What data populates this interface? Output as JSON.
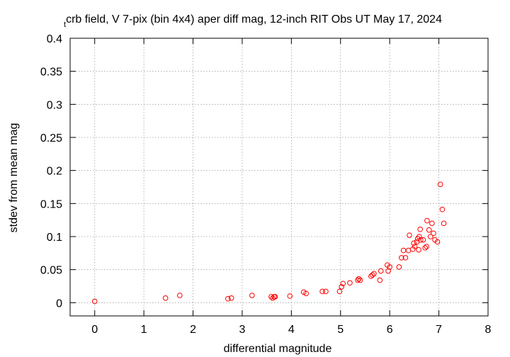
{
  "chart_data": {
    "type": "scatter",
    "title_prefix": "t",
    "title": "crb field, V 7-pix (bin 4x4) aper diff mag,  12-inch RIT Obs UT May 17, 2024",
    "xlabel": "differential magnitude",
    "ylabel": "stdev from mean mag",
    "xlim": [
      -0.5,
      8
    ],
    "ylim": [
      -0.02,
      0.4
    ],
    "xticks": [
      0,
      1,
      2,
      3,
      4,
      5,
      6,
      7,
      8
    ],
    "yticks": [
      0,
      0.05,
      0.1,
      0.15,
      0.2,
      0.25,
      0.3,
      0.35,
      0.4
    ],
    "xtick_labels": [
      "0",
      "1",
      "2",
      "3",
      "4",
      "5",
      "6",
      "7",
      "8"
    ],
    "ytick_labels": [
      "0",
      "0.05",
      "0.1",
      "0.15",
      "0.2",
      "0.25",
      "0.3",
      "0.35",
      "0.4"
    ],
    "grid": true,
    "marker": "open-circle",
    "marker_color": "#ff0000",
    "points": [
      [
        0.0,
        0.002
      ],
      [
        1.44,
        0.007
      ],
      [
        1.73,
        0.011
      ],
      [
        2.71,
        0.006
      ],
      [
        2.78,
        0.007
      ],
      [
        3.2,
        0.011
      ],
      [
        3.59,
        0.009
      ],
      [
        3.62,
        0.007
      ],
      [
        3.65,
        0.009
      ],
      [
        3.67,
        0.009
      ],
      [
        3.97,
        0.01
      ],
      [
        4.25,
        0.016
      ],
      [
        4.3,
        0.014
      ],
      [
        4.63,
        0.017
      ],
      [
        4.7,
        0.017
      ],
      [
        4.98,
        0.017
      ],
      [
        5.02,
        0.024
      ],
      [
        5.05,
        0.029
      ],
      [
        5.19,
        0.03
      ],
      [
        5.35,
        0.034
      ],
      [
        5.37,
        0.036
      ],
      [
        5.4,
        0.034
      ],
      [
        5.62,
        0.04
      ],
      [
        5.65,
        0.042
      ],
      [
        5.68,
        0.044
      ],
      [
        5.8,
        0.034
      ],
      [
        5.82,
        0.048
      ],
      [
        5.95,
        0.057
      ],
      [
        5.97,
        0.048
      ],
      [
        6.0,
        0.054
      ],
      [
        6.19,
        0.054
      ],
      [
        6.24,
        0.068
      ],
      [
        6.28,
        0.079
      ],
      [
        6.32,
        0.068
      ],
      [
        6.38,
        0.079
      ],
      [
        6.4,
        0.102
      ],
      [
        6.47,
        0.081
      ],
      [
        6.49,
        0.09
      ],
      [
        6.51,
        0.085
      ],
      [
        6.55,
        0.092
      ],
      [
        6.57,
        0.097
      ],
      [
        6.59,
        0.08
      ],
      [
        6.6,
        0.1
      ],
      [
        6.62,
        0.111
      ],
      [
        6.63,
        0.095
      ],
      [
        6.68,
        0.095
      ],
      [
        6.72,
        0.083
      ],
      [
        6.75,
        0.085
      ],
      [
        6.76,
        0.124
      ],
      [
        6.8,
        0.11
      ],
      [
        6.83,
        0.1
      ],
      [
        6.86,
        0.12
      ],
      [
        6.89,
        0.105
      ],
      [
        6.92,
        0.095
      ],
      [
        6.97,
        0.092
      ],
      [
        7.03,
        0.179
      ],
      [
        7.07,
        0.141
      ],
      [
        7.1,
        0.12
      ]
    ]
  }
}
